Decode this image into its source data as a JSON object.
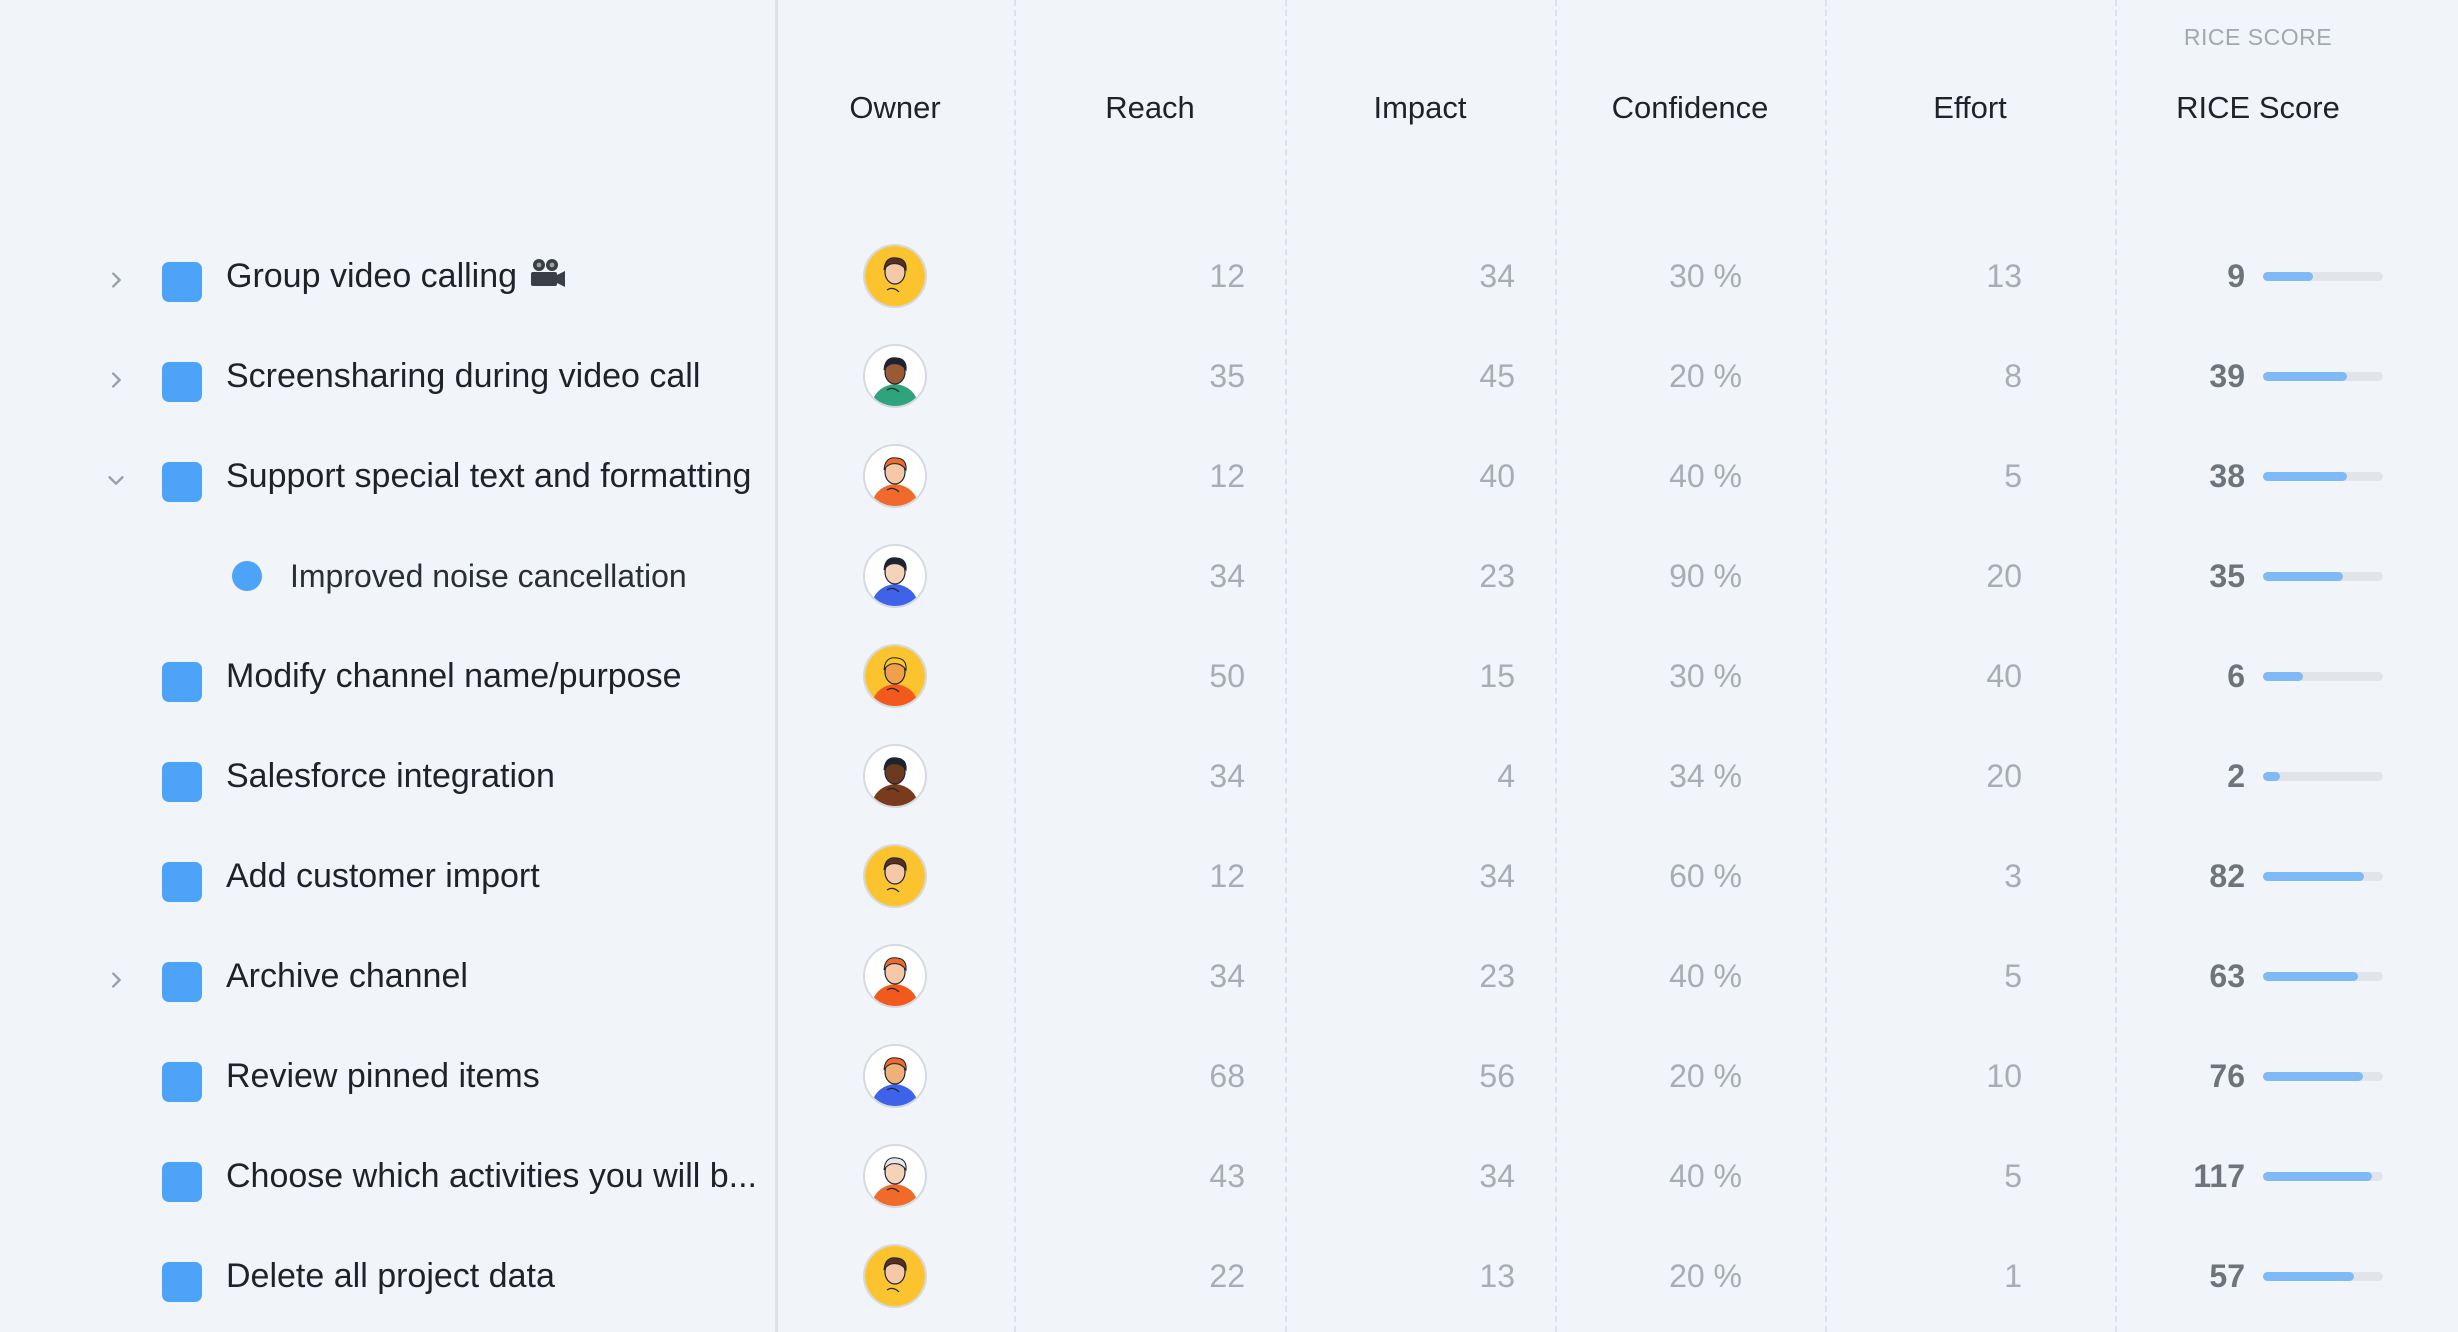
{
  "columns": {
    "owner": "Owner",
    "reach": "Reach",
    "impact": "Impact",
    "confidence": "Confidence",
    "effort": "Effort",
    "rice": "RICE Score",
    "rice_sub": "RICE SCORE"
  },
  "colors": {
    "accent": "#4da3f8",
    "bar": "#7fbaf6",
    "bar_track": "#e1e5ea",
    "background": "#f1f4f8"
  },
  "rows": [
    {
      "title": "Group video calling",
      "emoji_icon": "video-camera-icon",
      "chevron": "right",
      "marker": "square",
      "avatar": "yellow",
      "reach": "12",
      "impact": "34",
      "confidence": "30 %",
      "effort": "13",
      "score": "9",
      "score_fraction": 0.42
    },
    {
      "title": "Screensharing during video call",
      "chevron": "right",
      "marker": "square",
      "avatar": "teal",
      "reach": "35",
      "impact": "45",
      "confidence": "20 %",
      "effort": "8",
      "score": "39",
      "score_fraction": 0.7
    },
    {
      "title": "Support special text and formatting",
      "chevron": "down",
      "marker": "square",
      "avatar": "orange-hat",
      "reach": "12",
      "impact": "40",
      "confidence": "40 %",
      "effort": "5",
      "score": "38",
      "score_fraction": 0.7
    },
    {
      "title": "Improved noise cancellation",
      "chevron": "none",
      "marker": "dot",
      "avatar": "blue",
      "reach": "34",
      "impact": "23",
      "confidence": "90 %",
      "effort": "20",
      "score": "35",
      "score_fraction": 0.67
    },
    {
      "title": "Modify channel name/purpose",
      "chevron": "none",
      "marker": "square",
      "avatar": "orange-yellow",
      "reach": "50",
      "impact": "15",
      "confidence": "30 %",
      "effort": "40",
      "score": "6",
      "score_fraction": 0.33
    },
    {
      "title": "Salesforce integration",
      "chevron": "none",
      "marker": "square",
      "avatar": "brown",
      "reach": "34",
      "impact": "4",
      "confidence": "34 %",
      "effort": "20",
      "score": "2",
      "score_fraction": 0.14
    },
    {
      "title": "Add customer import",
      "chevron": "none",
      "marker": "square",
      "avatar": "yellow",
      "reach": "12",
      "impact": "34",
      "confidence": "60 %",
      "effort": "3",
      "score": "82",
      "score_fraction": 0.84
    },
    {
      "title": "Archive channel",
      "chevron": "right",
      "marker": "square",
      "avatar": "orange",
      "reach": "34",
      "impact": "23",
      "confidence": "40 %",
      "effort": "5",
      "score": "63",
      "score_fraction": 0.79
    },
    {
      "title": "Review pinned items",
      "chevron": "none",
      "marker": "square",
      "avatar": "blue-orange",
      "reach": "68",
      "impact": "56",
      "confidence": "20 %",
      "effort": "10",
      "score": "76",
      "score_fraction": 0.83
    },
    {
      "title": "Choose which activities you will b...",
      "chevron": "none",
      "marker": "square",
      "avatar": "white",
      "reach": "43",
      "impact": "34",
      "confidence": "40 %",
      "effort": "5",
      "score": "117",
      "score_fraction": 0.91
    },
    {
      "title": "Delete all project data",
      "chevron": "none",
      "marker": "square",
      "avatar": "yellow",
      "reach": "22",
      "impact": "13",
      "confidence": "20 %",
      "effort": "1",
      "score": "57",
      "score_fraction": 0.76
    }
  ]
}
